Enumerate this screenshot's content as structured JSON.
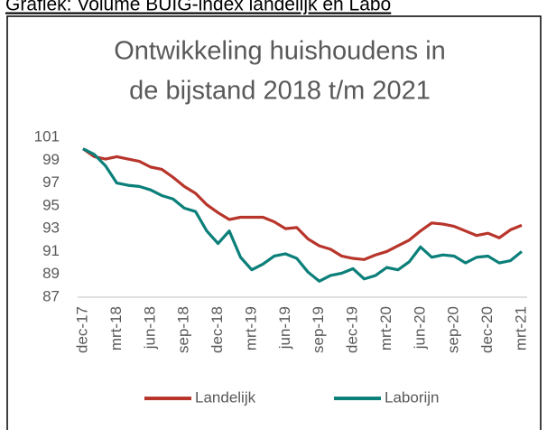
{
  "header_text": "Grafiek: Volume BUIG-index landelijk en Labo",
  "chart_data": {
    "type": "line",
    "title": [
      "Ontwikkeling huishoudens in",
      "de bijstand 2018 t/m 2021"
    ],
    "categories": [
      "dec-17",
      null,
      null,
      "mrt-18",
      null,
      null,
      "jun-18",
      null,
      null,
      "sep-18",
      null,
      null,
      "dec-18",
      null,
      null,
      "mrt-19",
      null,
      null,
      "jun-19",
      null,
      null,
      "sep-19",
      null,
      null,
      "dec-19",
      null,
      null,
      "mrt-20",
      null,
      null,
      "jun-20",
      null,
      null,
      "sep-20",
      null,
      null,
      "dec-20",
      null,
      null,
      "mrt-21"
    ],
    "series": [
      {
        "name": "Landelijk",
        "color": "#b8352b",
        "values": [
          100,
          99.3,
          99.1,
          99.3,
          99.1,
          98.9,
          98.4,
          98.2,
          97.5,
          96.7,
          96.1,
          95.1,
          94.4,
          93.8,
          94.0,
          94.0,
          94.0,
          93.6,
          93.0,
          93.1,
          92.1,
          91.5,
          91.2,
          90.6,
          90.4,
          90.3,
          90.7,
          91.0,
          91.5,
          92.0,
          92.8,
          93.5,
          93.4,
          93.2,
          92.8,
          92.4,
          92.6,
          92.2,
          92.9,
          93.3
        ]
      },
      {
        "name": "Laborijn",
        "color": "#0b7f79",
        "values": [
          100,
          99.5,
          98.5,
          97.0,
          96.8,
          96.7,
          96.4,
          95.9,
          95.6,
          94.8,
          94.5,
          92.8,
          91.7,
          92.8,
          90.5,
          89.4,
          89.9,
          90.6,
          90.8,
          90.4,
          89.2,
          88.4,
          88.9,
          89.1,
          89.5,
          88.6,
          88.9,
          89.6,
          89.4,
          90.1,
          91.4,
          90.5,
          90.7,
          90.6,
          90.0,
          90.5,
          90.6,
          90.0,
          90.2,
          91.0
        ]
      }
    ],
    "ylim": [
      87,
      101
    ],
    "yticks": [
      87,
      89,
      91,
      93,
      95,
      97,
      99,
      101
    ],
    "grid": false,
    "legend": "bottom"
  }
}
